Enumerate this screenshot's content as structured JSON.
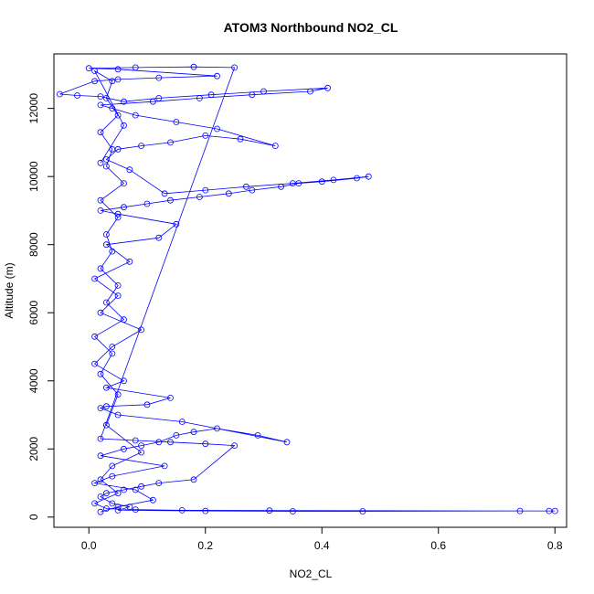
{
  "chart_data": {
    "type": "scatter",
    "title": "ATOM3 Northbound NO2_CL",
    "xlabel": "NO2_CL",
    "ylabel": "Altitude (m)",
    "xlim": [
      -0.06,
      0.82
    ],
    "ylim": [
      -300,
      13600
    ],
    "x_ticks": [
      0.0,
      0.2,
      0.4,
      0.6,
      0.8
    ],
    "x_tick_labels": [
      "0.0",
      "0.2",
      "0.4",
      "0.6",
      "0.8"
    ],
    "y_ticks": [
      0,
      2000,
      4000,
      6000,
      8000,
      10000,
      12000
    ],
    "y_tick_labels": [
      "0",
      "2000",
      "4000",
      "6000",
      "8000",
      "10000",
      "12000"
    ],
    "grid": false,
    "legend": "none",
    "marker": "open-circle",
    "connect_points": true,
    "colors": {
      "series": "#0000ff",
      "axes": "#000000",
      "background": "#ffffff"
    },
    "series": [
      {
        "x": [
          0.02,
          0.05,
          0.11,
          0.08,
          0.01,
          0.04,
          0.13,
          0.02,
          0.06,
          0.09,
          0.12,
          0.15,
          0.18,
          0.22,
          0.29,
          0.34,
          0.16,
          0.05,
          0.02,
          0.03,
          0.1,
          0.14,
          0.03,
          0.06,
          0.01,
          0.04,
          0.09,
          0.02,
          0.05,
          0.01,
          0.07,
          0.03,
          0.12,
          0.15,
          0.05,
          0.02,
          0.06,
          0.1,
          0.14,
          0.19,
          0.24,
          0.28,
          0.33,
          0.36,
          0.4,
          0.46,
          0.48,
          0.42,
          0.35,
          0.27,
          0.2,
          0.13,
          0.07,
          0.03,
          0.05,
          0.09,
          0.14,
          0.2,
          0.26,
          0.32,
          0.22,
          0.15,
          0.08,
          0.04,
          0.02,
          0.11,
          0.19,
          0.28,
          0.38,
          0.41,
          0.3,
          0.21,
          0.12,
          0.06,
          0.02,
          -0.02,
          -0.05,
          0.01,
          0.05,
          0.12,
          0.22,
          0.05,
          0.0,
          0.08,
          0.18,
          0.25,
          0.02,
          0.08,
          0.14,
          0.2,
          0.25,
          0.18,
          0.12,
          0.09,
          0.06,
          0.03,
          0.02,
          0.04,
          0.07,
          0.05,
          0.2,
          0.35,
          0.47,
          0.74,
          0.79,
          0.8,
          0.31,
          0.16,
          0.08,
          0.03,
          0.01,
          0.05,
          0.02,
          0.04,
          0.09,
          0.03,
          0.05,
          0.02,
          0.04,
          0.01,
          0.06,
          0.03,
          0.05,
          0.02,
          0.04,
          0.03,
          0.05,
          0.02,
          0.06,
          0.03,
          0.04,
          0.02,
          0.05,
          0.03,
          0.04,
          0.01,
          0.06,
          0.02
        ],
        "y": [
          150,
          300,
          500,
          800,
          1000,
          1200,
          1500,
          1800,
          2000,
          2100,
          2200,
          2400,
          2500,
          2600,
          2400,
          2200,
          2800,
          3000,
          3200,
          3250,
          3300,
          3500,
          3800,
          4000,
          4500,
          5000,
          5500,
          6000,
          6500,
          7000,
          7500,
          8000,
          8200,
          8600,
          8900,
          9000,
          9100,
          9200,
          9300,
          9400,
          9500,
          9600,
          9700,
          9800,
          9850,
          9950,
          10000,
          9900,
          9800,
          9700,
          9600,
          9500,
          10200,
          10500,
          10800,
          10900,
          11000,
          11200,
          11100,
          10900,
          11400,
          11600,
          11800,
          12000,
          12100,
          12200,
          12300,
          12400,
          12500,
          12600,
          12500,
          12400,
          12300,
          12200,
          12350,
          12380,
          12420,
          12800,
          12850,
          12900,
          12950,
          13150,
          13180,
          13200,
          13220,
          13200,
          2300,
          2250,
          2200,
          2150,
          2100,
          1100,
          1000,
          900,
          800,
          700,
          600,
          400,
          300,
          200,
          180,
          170,
          170,
          180,
          180,
          180,
          190,
          200,
          220,
          250,
          400,
          700,
          1100,
          1500,
          1900,
          2700,
          3600,
          4200,
          4800,
          5300,
          5800,
          6300,
          6800,
          7300,
          7800,
          8300,
          8800,
          9300,
          9800,
          10300,
          10800,
          11300,
          11800,
          12300,
          12800,
          13100,
          11500,
          10400
        ]
      }
    ]
  }
}
